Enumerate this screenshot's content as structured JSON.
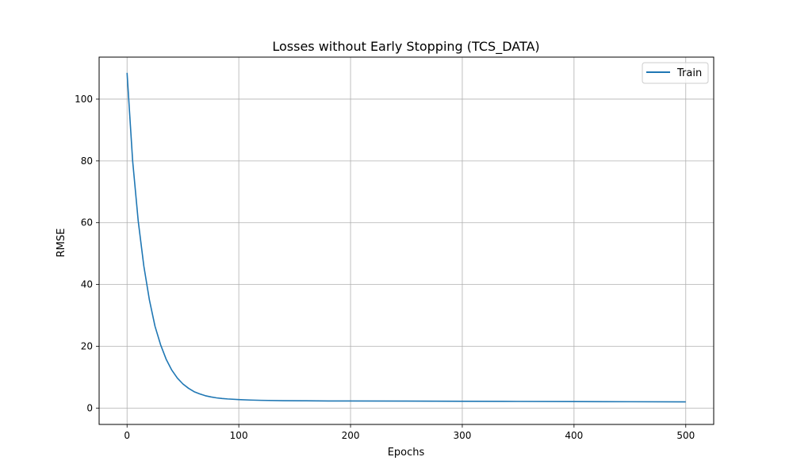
{
  "chart_data": {
    "type": "line",
    "title": "Losses without Early Stopping (TCS_DATA)",
    "xlabel": "Epochs",
    "ylabel": "RMSE",
    "xlim": [
      -25,
      525
    ],
    "ylim": [
      -5.3,
      113.6
    ],
    "xticks": [
      0,
      100,
      200,
      300,
      400,
      500
    ],
    "yticks": [
      0,
      20,
      40,
      60,
      80,
      100
    ],
    "xtick_labels": [
      "0",
      "100",
      "200",
      "300",
      "400",
      "500"
    ],
    "ytick_labels": [
      "0",
      "20",
      "40",
      "60",
      "80",
      "100"
    ],
    "grid": true,
    "legend_position": "top-right",
    "series": [
      {
        "name": "Train",
        "color": "#1f77b4",
        "x": [
          0,
          5,
          10,
          15,
          20,
          25,
          30,
          35,
          40,
          45,
          50,
          55,
          60,
          65,
          70,
          75,
          80,
          85,
          90,
          100,
          110,
          120,
          140,
          160,
          180,
          200,
          250,
          300,
          350,
          400,
          450,
          500
        ],
        "y": [
          108.5,
          80,
          60.5,
          46,
          35,
          26.5,
          20.5,
          15.8,
          12.3,
          9.7,
          7.8,
          6.4,
          5.3,
          4.6,
          4.0,
          3.6,
          3.3,
          3.1,
          2.95,
          2.75,
          2.6,
          2.5,
          2.4,
          2.35,
          2.3,
          2.28,
          2.25,
          2.2,
          2.15,
          2.1,
          2.05,
          2.0
        ]
      }
    ]
  }
}
